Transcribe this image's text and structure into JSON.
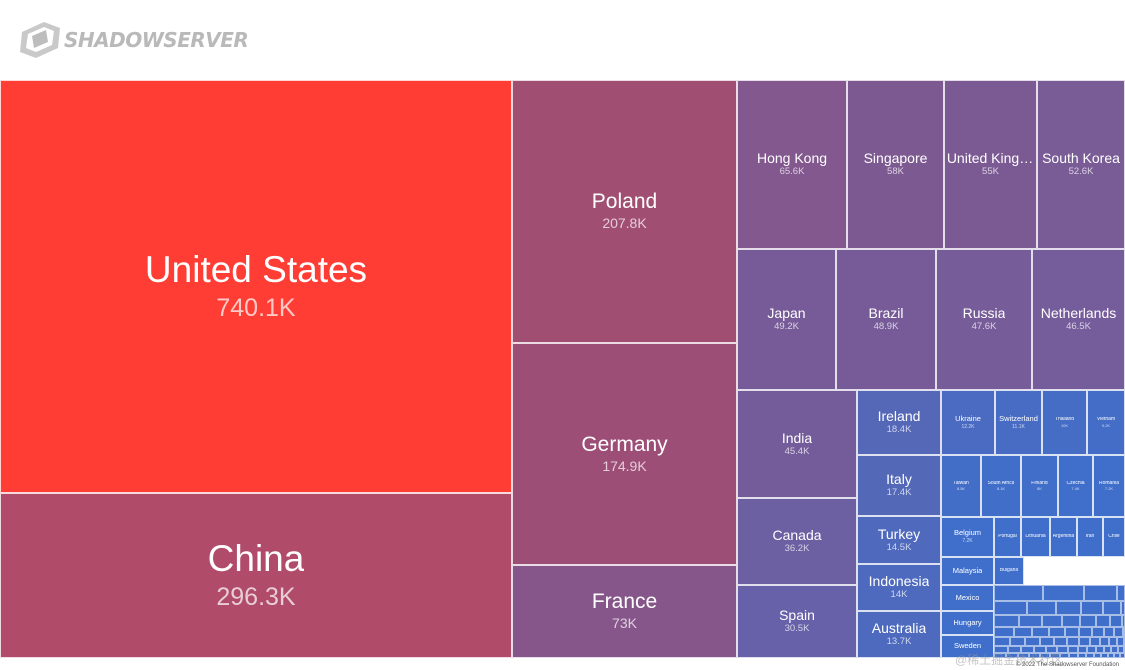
{
  "brand": {
    "name": "SHADOWSERVER",
    "logo_icon": "shadowserver-server-icon",
    "text_color": "#b9b9b9"
  },
  "chart_data": {
    "type": "treemap",
    "title": "",
    "unit": "K",
    "colors": {
      "max": "#ff3d35",
      "mid": "#9a4f78",
      "min": "#3f6fcb"
    },
    "items": [
      {
        "name": "United States",
        "label": "740.1K",
        "value": 740.1
      },
      {
        "name": "China",
        "label": "296.3K",
        "value": 296.3
      },
      {
        "name": "Poland",
        "label": "207.8K",
        "value": 207.8
      },
      {
        "name": "Germany",
        "label": "174.9K",
        "value": 174.9
      },
      {
        "name": "France",
        "label": "73K",
        "value": 73
      },
      {
        "name": "Hong Kong",
        "label": "65.6K",
        "value": 65.6
      },
      {
        "name": "Singapore",
        "label": "58K",
        "value": 58
      },
      {
        "name": "United Kingdom",
        "label": "55K",
        "value": 55
      },
      {
        "name": "South Korea",
        "label": "52.6K",
        "value": 52.6
      },
      {
        "name": "Japan",
        "label": "49.2K",
        "value": 49.2
      },
      {
        "name": "Brazil",
        "label": "48.9K",
        "value": 48.9
      },
      {
        "name": "Russia",
        "label": "47.6K",
        "value": 47.6
      },
      {
        "name": "Netherlands",
        "label": "46.5K",
        "value": 46.5
      },
      {
        "name": "India",
        "label": "45.4K",
        "value": 45.4
      },
      {
        "name": "Canada",
        "label": "36.2K",
        "value": 36.2
      },
      {
        "name": "Spain",
        "label": "30.5K",
        "value": 30.5
      },
      {
        "name": "Ireland",
        "label": "18.4K",
        "value": 18.4
      },
      {
        "name": "Italy",
        "label": "17.4K",
        "value": 17.4
      },
      {
        "name": "Turkey",
        "label": "14.5K",
        "value": 14.5
      },
      {
        "name": "Indonesia",
        "label": "14K",
        "value": 14
      },
      {
        "name": "Australia",
        "label": "13.7K",
        "value": 13.7
      },
      {
        "name": "Ukraine",
        "label": "12.2K",
        "value": 12.2
      },
      {
        "name": "Switzerland",
        "label": "11.1K",
        "value": 11.1
      },
      {
        "name": "Thailand",
        "label": "10K",
        "value": 10
      },
      {
        "name": "Vietnam",
        "label": "9.2K",
        "value": 9.2
      },
      {
        "name": "Taiwan",
        "label": "8.5K",
        "value": 8.5
      },
      {
        "name": "South Africa",
        "label": "8.1K",
        "value": 8.1
      },
      {
        "name": "Finland",
        "label": "8K",
        "value": 8
      },
      {
        "name": "Czechia",
        "label": "7.4K",
        "value": 7.4
      },
      {
        "name": "Romania",
        "label": "7.2K",
        "value": 7.2
      },
      {
        "name": "Belgium",
        "label": "7.2K",
        "value": 7.2
      },
      {
        "name": "Portugal",
        "label": "",
        "value": null
      },
      {
        "name": "Lithuania",
        "label": "",
        "value": null
      },
      {
        "name": "Argentina",
        "label": "",
        "value": null
      },
      {
        "name": "Iran",
        "label": "",
        "value": null
      },
      {
        "name": "Chile",
        "label": "",
        "value": null
      },
      {
        "name": "Malaysia",
        "label": "",
        "value": null
      },
      {
        "name": "Bulgaria",
        "label": "",
        "value": null
      },
      {
        "name": "Mexico",
        "label": "",
        "value": null
      },
      {
        "name": "Hungary",
        "label": "",
        "value": null
      },
      {
        "name": "Sweden",
        "label": "",
        "value": null
      }
    ]
  },
  "footer": {
    "copyright": "© 2022 The Shadowserver Foundation",
    "watermark": "@稀土掘金技术社区"
  }
}
